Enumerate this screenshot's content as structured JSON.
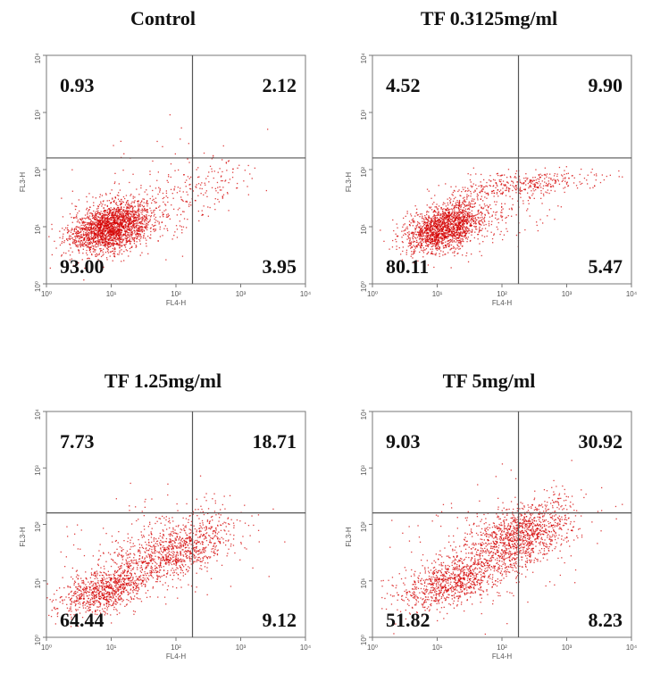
{
  "chart_data": [
    {
      "type": "scatter",
      "title": "Control",
      "xlabel": "FL4-H",
      "ylabel": "FL3-H",
      "xscale": "log",
      "yscale": "log",
      "xlim": [
        1,
        10000
      ],
      "ylim": [
        1,
        10000
      ],
      "xticks": [
        "10⁰",
        "10¹",
        "10²",
        "10³",
        "10⁴"
      ],
      "yticks": [
        "10⁰",
        "10¹",
        "10²",
        "10³",
        "10⁴"
      ],
      "gate": {
        "x": 180,
        "y": 160
      },
      "quadrants": {
        "upper_left": "0.93",
        "upper_right": "2.12",
        "lower_left": "93.00",
        "lower_right": "3.95"
      },
      "point_color": "#d40000"
    },
    {
      "type": "scatter",
      "title": "TF 0.3125mg/ml",
      "xlabel": "FL4-H",
      "ylabel": "FL3-H",
      "xscale": "log",
      "yscale": "log",
      "xlim": [
        1,
        10000
      ],
      "ylim": [
        1,
        10000
      ],
      "xticks": [
        "10⁰",
        "10¹",
        "10²",
        "10³",
        "10⁴"
      ],
      "yticks": [
        "10⁰",
        "10¹",
        "10²",
        "10³",
        "10⁴"
      ],
      "gate": {
        "x": 180,
        "y": 160
      },
      "quadrants": {
        "upper_left": "4.52",
        "upper_right": "9.90",
        "lower_left": "80.11",
        "lower_right": "5.47"
      },
      "point_color": "#d40000"
    },
    {
      "type": "scatter",
      "title": "TF 1.25mg/ml",
      "xlabel": "FL4-H",
      "ylabel": "FL3-H",
      "xscale": "log",
      "yscale": "log",
      "xlim": [
        1,
        10000
      ],
      "ylim": [
        1,
        10000
      ],
      "xticks": [
        "10⁰",
        "10¹",
        "10²",
        "10³",
        "10⁴"
      ],
      "yticks": [
        "10⁰",
        "10¹",
        "10²",
        "10³",
        "10⁴"
      ],
      "gate": {
        "x": 180,
        "y": 160
      },
      "quadrants": {
        "upper_left": "7.73",
        "upper_right": "18.71",
        "lower_left": "64.44",
        "lower_right": "9.12"
      },
      "point_color": "#d40000"
    },
    {
      "type": "scatter",
      "title": "TF 5mg/ml",
      "xlabel": "FL4-H",
      "ylabel": "FL3-H",
      "xscale": "log",
      "yscale": "log",
      "xlim": [
        1,
        10000
      ],
      "ylim": [
        1,
        10000
      ],
      "xticks": [
        "10⁰",
        "10¹",
        "10²",
        "10³",
        "10⁴"
      ],
      "yticks": [
        "10⁰",
        "10¹",
        "10²",
        "10³",
        "10⁴"
      ],
      "gate": {
        "x": 180,
        "y": 160
      },
      "quadrants": {
        "upper_left": "9.03",
        "upper_right": "30.92",
        "lower_left": "51.82",
        "lower_right": "8.23"
      },
      "point_color": "#d40000"
    }
  ]
}
